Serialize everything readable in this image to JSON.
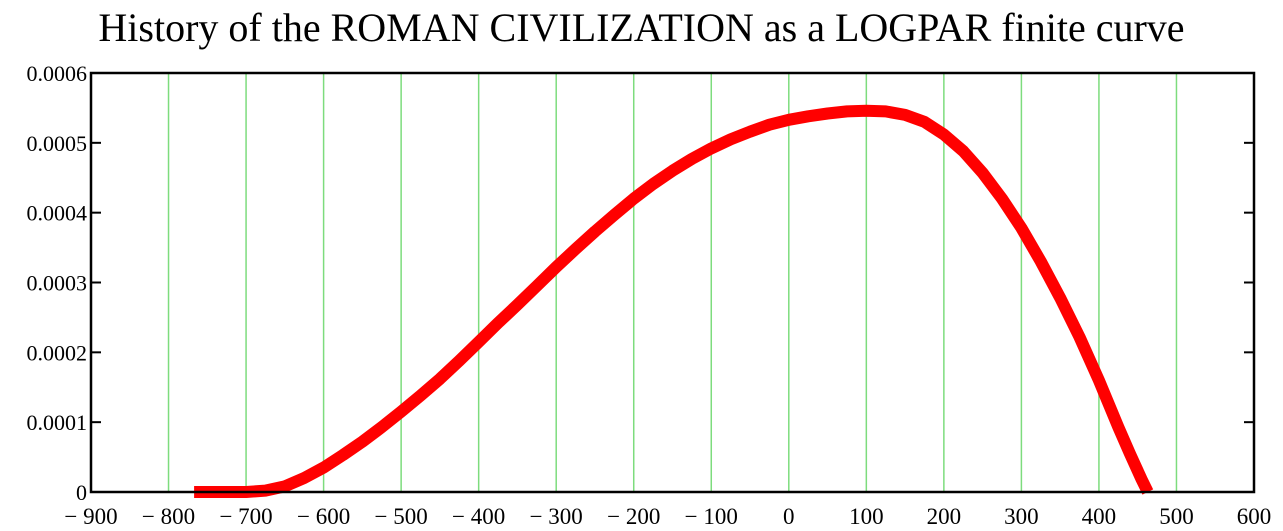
{
  "chart_data": {
    "type": "line",
    "title": "History of the ROMAN CIVILIZATION as a LOGPAR finite curve",
    "xlabel": "",
    "ylabel": "",
    "xlim": [
      -900,
      600
    ],
    "ylim": [
      0,
      0.0006
    ],
    "x_ticks": [
      {
        "value": -900,
        "label": "− 900"
      },
      {
        "value": -800,
        "label": "− 800"
      },
      {
        "value": -700,
        "label": "− 700"
      },
      {
        "value": -600,
        "label": "− 600"
      },
      {
        "value": -500,
        "label": "− 500"
      },
      {
        "value": -400,
        "label": "− 400"
      },
      {
        "value": -300,
        "label": "− 300"
      },
      {
        "value": -200,
        "label": "− 200"
      },
      {
        "value": -100,
        "label": "− 100"
      },
      {
        "value": 0,
        "label": "0"
      },
      {
        "value": 100,
        "label": "100"
      },
      {
        "value": 200,
        "label": "200"
      },
      {
        "value": 300,
        "label": "300"
      },
      {
        "value": 400,
        "label": "400"
      },
      {
        "value": 500,
        "label": "500"
      },
      {
        "value": 600,
        "label": "600"
      }
    ],
    "y_ticks": [
      {
        "value": 0,
        "label": "0"
      },
      {
        "value": 0.0001,
        "label": "0.0001"
      },
      {
        "value": 0.0002,
        "label": "0.0002"
      },
      {
        "value": 0.0003,
        "label": "0.0003"
      },
      {
        "value": 0.0004,
        "label": "0.0004"
      },
      {
        "value": 0.0005,
        "label": "0.0005"
      },
      {
        "value": 0.0006,
        "label": "0.0006"
      }
    ],
    "gridlines_x": [
      -800,
      -700,
      -600,
      -500,
      -400,
      -300,
      -200,
      -100,
      0,
      100,
      200,
      300,
      400,
      500
    ],
    "grid": "vertical",
    "legend": "none",
    "series": [
      {
        "color": "#ff0000",
        "grid_color": "#7ddc7d",
        "x": [
          -767,
          -750,
          -700,
          -675,
          -650,
          -625,
          -600,
          -575,
          -550,
          -525,
          -500,
          -475,
          -450,
          -425,
          -400,
          -375,
          -350,
          -325,
          -300,
          -275,
          -250,
          -225,
          -200,
          -175,
          -150,
          -125,
          -100,
          -75,
          -50,
          -25,
          0,
          25,
          50,
          75,
          100,
          125,
          150,
          175,
          200,
          225,
          250,
          275,
          300,
          325,
          350,
          375,
          400,
          425,
          440,
          455,
          463
        ],
        "y": [
          0,
          0,
          0,
          2e-06,
          8e-06,
          2e-05,
          3.5e-05,
          5.3e-05,
          7.2e-05,
          9.3e-05,
          0.000115,
          0.000138,
          0.000162,
          0.000188,
          0.000215,
          0.000242,
          0.000268,
          0.000295,
          0.000322,
          0.000348,
          0.000373,
          0.000397,
          0.00042,
          0.000441,
          0.00046,
          0.000477,
          0.000492,
          0.000505,
          0.000516,
          0.000526,
          0.000533,
          0.000538,
          0.000542,
          0.000545,
          0.000546,
          0.000545,
          0.00054,
          0.00053,
          0.000512,
          0.000488,
          0.000457,
          0.00042,
          0.000378,
          0.00033,
          0.000278,
          0.000222,
          0.00016,
          9.3e-05,
          5.5e-05,
          1.8e-05,
          0
        ]
      }
    ]
  }
}
